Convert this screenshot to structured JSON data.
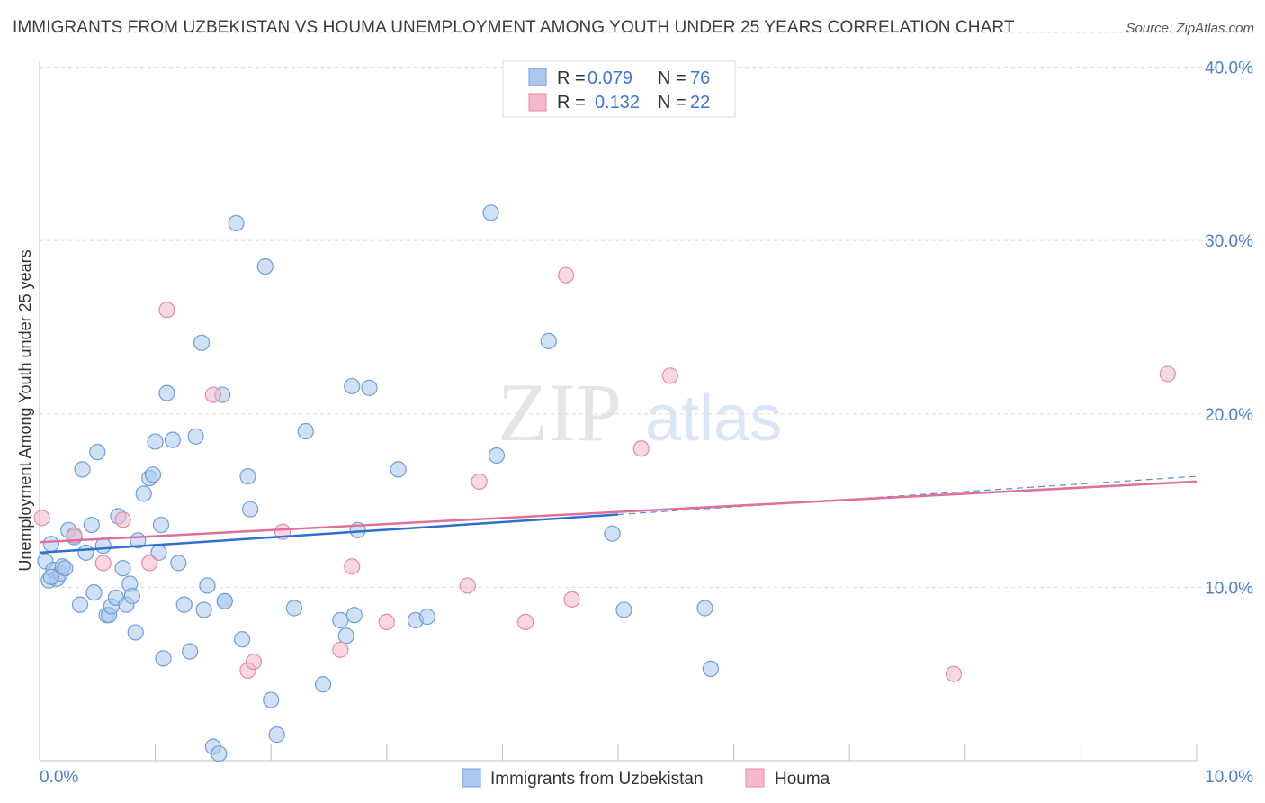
{
  "title": "IMMIGRANTS FROM UZBEKISTAN VS HOUMA UNEMPLOYMENT AMONG YOUTH UNDER 25 YEARS CORRELATION CHART",
  "source": "Source: ZipAtlas.com",
  "watermark": {
    "zip": "ZIP",
    "atlas": "atlas"
  },
  "colors": {
    "blue_fill": "#a9c8ef",
    "blue_stroke": "#6f9edb",
    "blue_line": "#2f6fd0",
    "pink_fill": "#f5b8cc",
    "pink_stroke": "#e58aa8",
    "pink_line": "#e0709a",
    "grid": "#d9dce2",
    "axis_text": "#4a7fd0"
  },
  "legend": {
    "rows": [
      {
        "r_label": "R =",
        "r_value": "0.079",
        "n_label": "N =",
        "n_value": "76"
      },
      {
        "r_label": "R =",
        "r_value": "0.132",
        "n_label": "N =",
        "n_value": "22"
      }
    ]
  },
  "bottom_legend": [
    "Immigrants from Uzbekistan",
    "Houma"
  ],
  "chart_data": {
    "type": "scatter",
    "title": "IMMIGRANTS FROM UZBEKISTAN VS HOUMA UNEMPLOYMENT AMONG YOUTH UNDER 25 YEARS CORRELATION CHART",
    "xlabel": "",
    "ylabel": "Unemployment Among Youth under 25 years",
    "xlim": [
      0,
      10
    ],
    "ylim": [
      0,
      42
    ],
    "x_tick_labels": [
      "0.0%",
      "10.0%"
    ],
    "y_ticks": [
      10,
      20,
      30,
      40
    ],
    "y_tick_labels": [
      "10.0%",
      "20.0%",
      "30.0%",
      "40.0%"
    ],
    "grid": true,
    "legend_position": "top-center",
    "series": [
      {
        "name": "Immigrants from Uzbekistan",
        "r": 0.079,
        "n": 76,
        "trend": {
          "x": [
            0,
            5.0
          ],
          "y": [
            12.0,
            14.2
          ]
        },
        "trend_dashed": {
          "x": [
            5.0,
            10.0
          ],
          "y": [
            14.2,
            16.4
          ]
        },
        "points": [
          {
            "x": 0.05,
            "y": 11.5
          },
          {
            "x": 0.08,
            "y": 10.4
          },
          {
            "x": 0.1,
            "y": 12.5
          },
          {
            "x": 0.12,
            "y": 11.0
          },
          {
            "x": 0.15,
            "y": 10.5
          },
          {
            "x": 0.18,
            "y": 10.8
          },
          {
            "x": 0.2,
            "y": 11.2
          },
          {
            "x": 0.25,
            "y": 13.3
          },
          {
            "x": 0.3,
            "y": 12.9
          },
          {
            "x": 0.35,
            "y": 9.0
          },
          {
            "x": 0.37,
            "y": 16.8
          },
          {
            "x": 0.4,
            "y": 12.0
          },
          {
            "x": 0.45,
            "y": 13.6
          },
          {
            "x": 0.47,
            "y": 9.7
          },
          {
            "x": 0.5,
            "y": 17.8
          },
          {
            "x": 0.55,
            "y": 12.4
          },
          {
            "x": 0.58,
            "y": 8.4
          },
          {
            "x": 0.6,
            "y": 8.4
          },
          {
            "x": 0.62,
            "y": 8.9
          },
          {
            "x": 0.66,
            "y": 9.4
          },
          {
            "x": 0.68,
            "y": 14.1
          },
          {
            "x": 0.72,
            "y": 11.1
          },
          {
            "x": 0.75,
            "y": 9.0
          },
          {
            "x": 0.78,
            "y": 10.2
          },
          {
            "x": 0.8,
            "y": 9.5
          },
          {
            "x": 0.85,
            "y": 12.7
          },
          {
            "x": 0.83,
            "y": 7.4
          },
          {
            "x": 0.9,
            "y": 15.4
          },
          {
            "x": 0.95,
            "y": 16.3
          },
          {
            "x": 0.98,
            "y": 16.5
          },
          {
            "x": 1.0,
            "y": 18.4
          },
          {
            "x": 1.03,
            "y": 12.0
          },
          {
            "x": 1.05,
            "y": 13.6
          },
          {
            "x": 1.07,
            "y": 5.9
          },
          {
            "x": 1.1,
            "y": 21.2
          },
          {
            "x": 1.15,
            "y": 18.5
          },
          {
            "x": 1.2,
            "y": 11.4
          },
          {
            "x": 1.25,
            "y": 9.0
          },
          {
            "x": 1.3,
            "y": 6.3
          },
          {
            "x": 1.35,
            "y": 18.7
          },
          {
            "x": 1.4,
            "y": 24.1
          },
          {
            "x": 1.42,
            "y": 8.7
          },
          {
            "x": 1.45,
            "y": 10.1
          },
          {
            "x": 1.5,
            "y": 0.8
          },
          {
            "x": 1.55,
            "y": 0.4
          },
          {
            "x": 1.58,
            "y": 21.1
          },
          {
            "x": 1.6,
            "y": 9.2
          },
          {
            "x": 1.6,
            "y": 9.2
          },
          {
            "x": 1.7,
            "y": 31.0
          },
          {
            "x": 1.75,
            "y": 7.0
          },
          {
            "x": 1.8,
            "y": 16.4
          },
          {
            "x": 1.82,
            "y": 14.5
          },
          {
            "x": 1.95,
            "y": 28.5
          },
          {
            "x": 2.0,
            "y": 3.5
          },
          {
            "x": 2.05,
            "y": 1.5
          },
          {
            "x": 2.2,
            "y": 8.8
          },
          {
            "x": 2.3,
            "y": 19.0
          },
          {
            "x": 2.45,
            "y": 4.4
          },
          {
            "x": 2.6,
            "y": 8.1
          },
          {
            "x": 2.65,
            "y": 7.2
          },
          {
            "x": 2.7,
            "y": 21.6
          },
          {
            "x": 2.72,
            "y": 8.4
          },
          {
            "x": 2.75,
            "y": 13.3
          },
          {
            "x": 2.85,
            "y": 21.5
          },
          {
            "x": 3.1,
            "y": 16.8
          },
          {
            "x": 3.25,
            "y": 8.1
          },
          {
            "x": 3.35,
            "y": 8.3
          },
          {
            "x": 3.9,
            "y": 31.6
          },
          {
            "x": 3.95,
            "y": 17.6
          },
          {
            "x": 4.4,
            "y": 24.2
          },
          {
            "x": 4.95,
            "y": 13.1
          },
          {
            "x": 5.05,
            "y": 8.7
          },
          {
            "x": 5.75,
            "y": 8.8
          },
          {
            "x": 5.8,
            "y": 5.3
          },
          {
            "x": 0.1,
            "y": 10.6
          },
          {
            "x": 0.22,
            "y": 11.1
          }
        ]
      },
      {
        "name": "Houma",
        "r": 0.132,
        "n": 22,
        "trend": {
          "x": [
            0,
            10.0
          ],
          "y": [
            12.6,
            16.1
          ]
        },
        "points": [
          {
            "x": 0.02,
            "y": 14.0
          },
          {
            "x": 0.3,
            "y": 13.0
          },
          {
            "x": 0.55,
            "y": 11.4
          },
          {
            "x": 0.72,
            "y": 13.9
          },
          {
            "x": 0.95,
            "y": 11.4
          },
          {
            "x": 1.1,
            "y": 26.0
          },
          {
            "x": 1.5,
            "y": 21.1
          },
          {
            "x": 1.8,
            "y": 5.2
          },
          {
            "x": 1.85,
            "y": 5.7
          },
          {
            "x": 2.1,
            "y": 13.2
          },
          {
            "x": 2.6,
            "y": 6.4
          },
          {
            "x": 2.7,
            "y": 11.2
          },
          {
            "x": 3.0,
            "y": 8.0
          },
          {
            "x": 3.7,
            "y": 10.1
          },
          {
            "x": 3.8,
            "y": 16.1
          },
          {
            "x": 4.2,
            "y": 8.0
          },
          {
            "x": 4.55,
            "y": 28.0
          },
          {
            "x": 4.6,
            "y": 9.3
          },
          {
            "x": 5.2,
            "y": 18.0
          },
          {
            "x": 5.45,
            "y": 22.2
          },
          {
            "x": 7.9,
            "y": 5.0
          },
          {
            "x": 9.75,
            "y": 22.3
          }
        ]
      }
    ]
  }
}
